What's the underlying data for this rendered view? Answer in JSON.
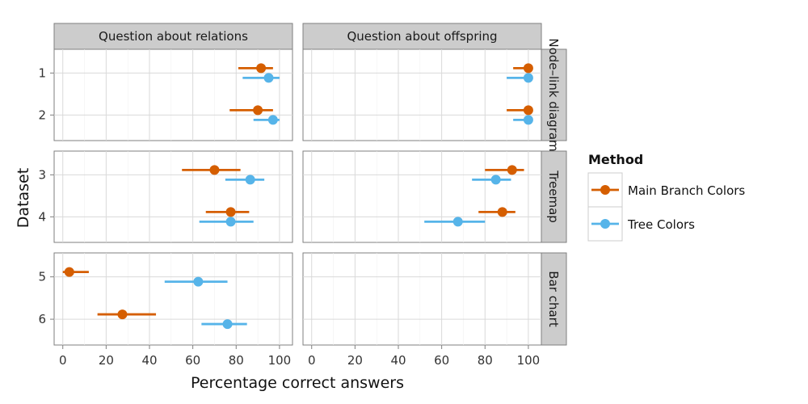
{
  "chart_data": {
    "type": "scatter",
    "subtype": "dot-with-error-bars, faceted",
    "xlabel": "Percentage correct answers",
    "ylabel": "Dataset",
    "xlim": [
      -4,
      106
    ],
    "x_ticks": [
      0,
      20,
      40,
      60,
      80,
      100
    ],
    "columns": [
      "Question about relations",
      "Question about offspring"
    ],
    "rows": [
      {
        "label": "Node–link diagram",
        "datasets": [
          "1",
          "2"
        ]
      },
      {
        "label": "Treemap",
        "datasets": [
          "3",
          "4"
        ]
      },
      {
        "label": "Bar chart",
        "datasets": [
          "5",
          "6"
        ]
      }
    ],
    "legend": {
      "title": "Method",
      "position": "right",
      "entries": [
        {
          "name": "Main Branch Colors",
          "color": "#D55E00"
        },
        {
          "name": "Tree Colors",
          "color": "#56B4E9"
        }
      ]
    },
    "grid": true,
    "series": [
      {
        "name": "Main Branch Colors",
        "points": [
          {
            "column": 0,
            "dataset": "1",
            "value": 91.5,
            "low": 81,
            "high": 97
          },
          {
            "column": 0,
            "dataset": "2",
            "value": 90,
            "low": 77,
            "high": 97
          },
          {
            "column": 0,
            "dataset": "3",
            "value": 70,
            "low": 55,
            "high": 82
          },
          {
            "column": 0,
            "dataset": "4",
            "value": 77.5,
            "low": 66,
            "high": 86
          },
          {
            "column": 0,
            "dataset": "5",
            "value": 3,
            "low": 0,
            "high": 12
          },
          {
            "column": 0,
            "dataset": "6",
            "value": 27.5,
            "low": 16,
            "high": 43
          },
          {
            "column": 1,
            "dataset": "1",
            "value": 100,
            "low": 93,
            "high": 100
          },
          {
            "column": 1,
            "dataset": "2",
            "value": 100,
            "low": 90,
            "high": 100
          },
          {
            "column": 1,
            "dataset": "3",
            "value": 92.5,
            "low": 80,
            "high": 98
          },
          {
            "column": 1,
            "dataset": "4",
            "value": 88,
            "low": 77,
            "high": 94
          }
        ]
      },
      {
        "name": "Tree Colors",
        "points": [
          {
            "column": 0,
            "dataset": "1",
            "value": 95,
            "low": 83,
            "high": 100
          },
          {
            "column": 0,
            "dataset": "2",
            "value": 97,
            "low": 88,
            "high": 100
          },
          {
            "column": 0,
            "dataset": "3",
            "value": 86.5,
            "low": 75,
            "high": 93
          },
          {
            "column": 0,
            "dataset": "4",
            "value": 77.5,
            "low": 63,
            "high": 88
          },
          {
            "column": 0,
            "dataset": "5",
            "value": 62.5,
            "low": 47,
            "high": 76
          },
          {
            "column": 0,
            "dataset": "6",
            "value": 76,
            "low": 64,
            "high": 85
          },
          {
            "column": 1,
            "dataset": "1",
            "value": 100,
            "low": 90,
            "high": 100
          },
          {
            "column": 1,
            "dataset": "2",
            "value": 100,
            "low": 93,
            "high": 100
          },
          {
            "column": 1,
            "dataset": "3",
            "value": 85,
            "low": 74,
            "high": 92
          },
          {
            "column": 1,
            "dataset": "4",
            "value": 67.5,
            "low": 52,
            "high": 80
          }
        ]
      }
    ]
  }
}
